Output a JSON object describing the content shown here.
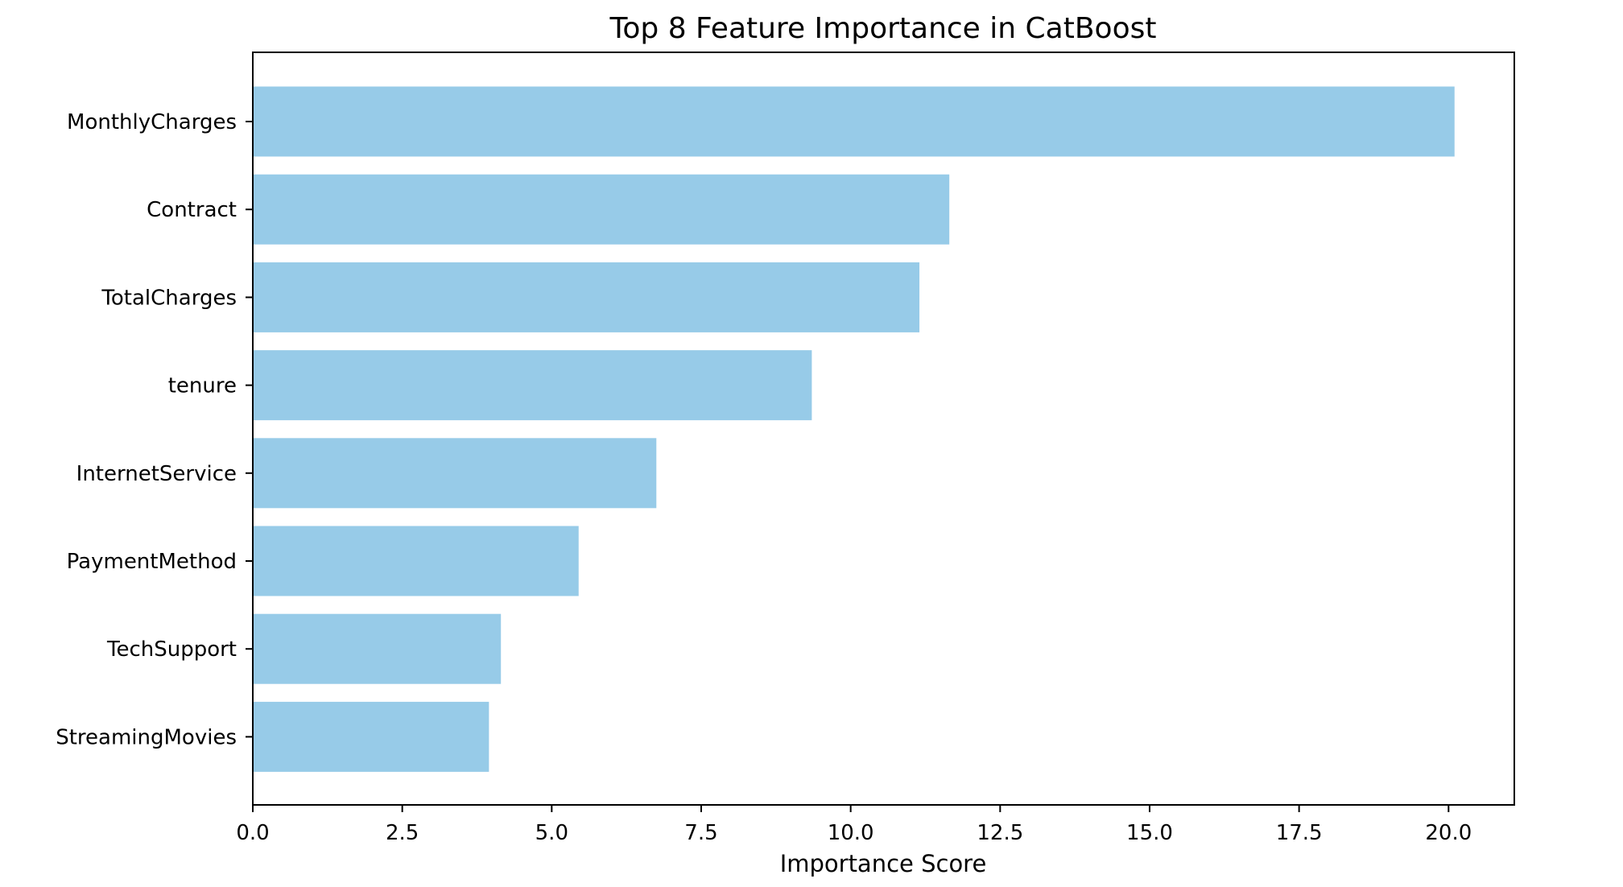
{
  "chart_data": {
    "type": "bar",
    "orientation": "horizontal",
    "title": "Top 8 Feature Importance in CatBoost",
    "xlabel": "Importance Score",
    "ylabel": "",
    "categories": [
      "MonthlyCharges",
      "Contract",
      "TotalCharges",
      "tenure",
      "InternetService",
      "PaymentMethod",
      "TechSupport",
      "StreamingMovies"
    ],
    "values": [
      20.1,
      11.65,
      11.15,
      9.35,
      6.75,
      5.45,
      4.15,
      3.95
    ],
    "xlim": [
      0,
      21.1
    ],
    "xticks": [
      0.0,
      2.5,
      5.0,
      7.5,
      10.0,
      12.5,
      15.0,
      17.5,
      20.0
    ],
    "xtick_labels": [
      "0.0",
      "2.5",
      "5.0",
      "7.5",
      "10.0",
      "12.5",
      "15.0",
      "17.5",
      "20.0"
    ],
    "bar_color": "#97cbe8",
    "grid": false,
    "legend": "none"
  }
}
